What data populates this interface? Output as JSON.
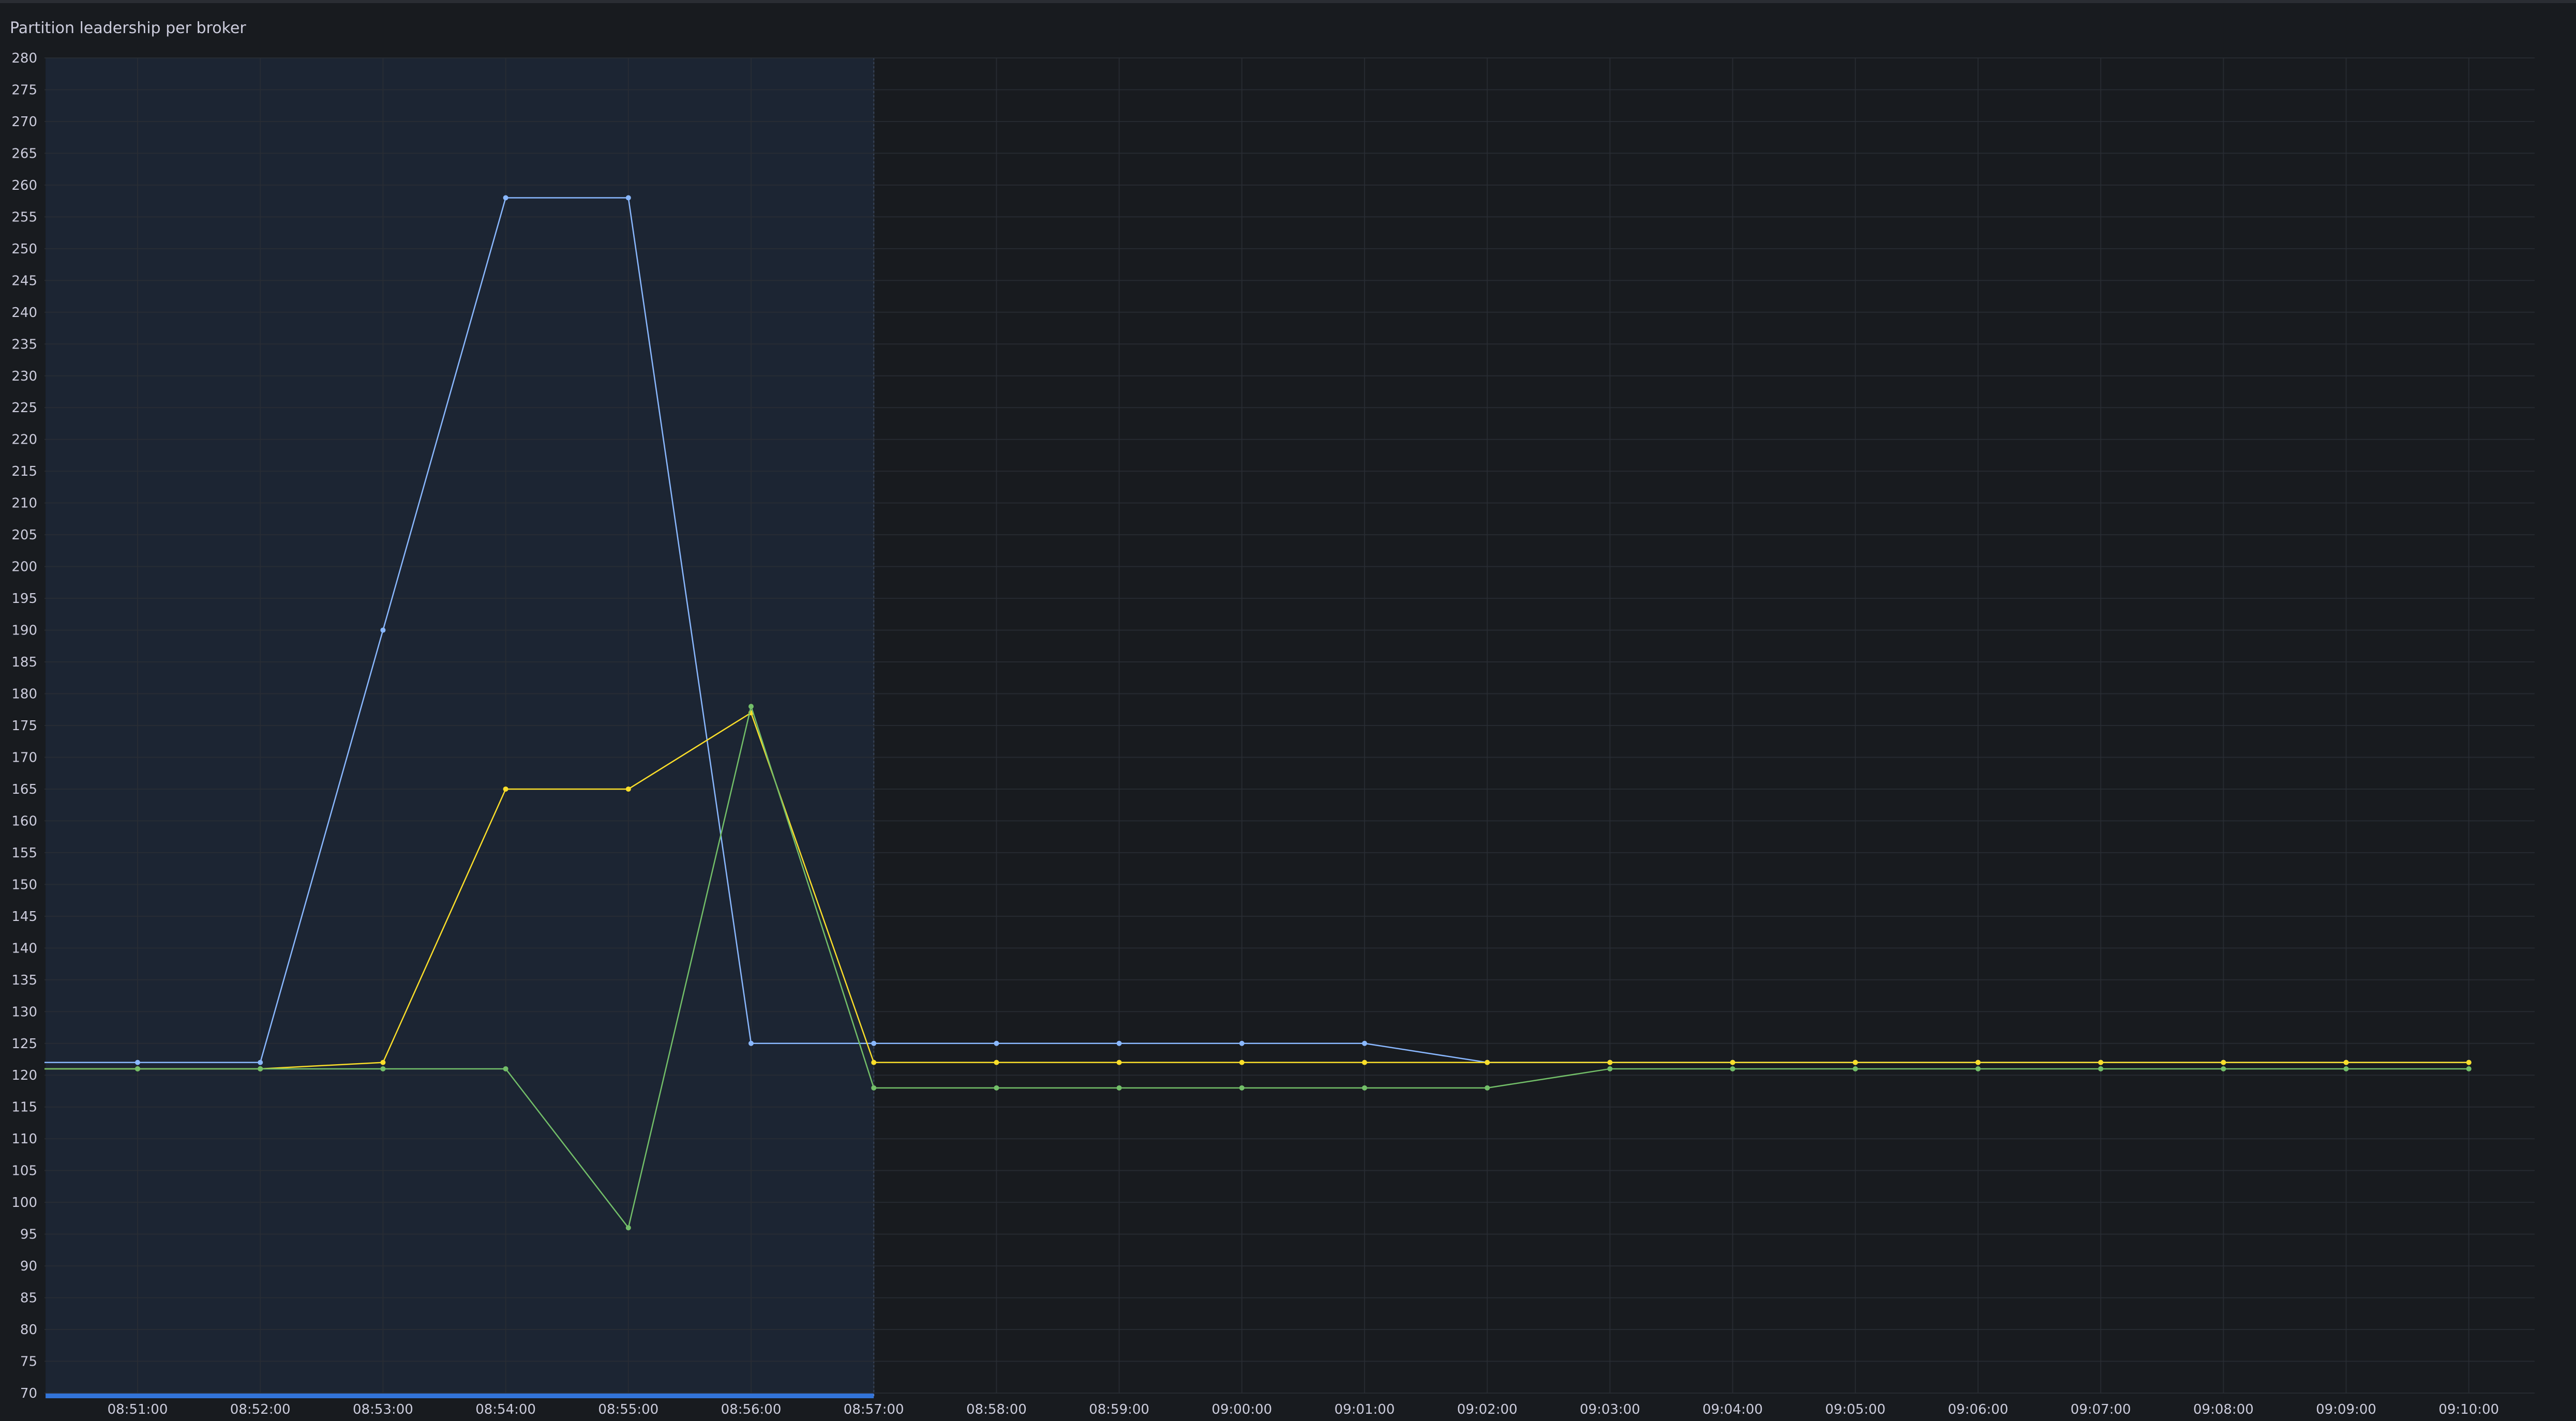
{
  "panel": {
    "title": "Partition leadership per broker"
  },
  "colors": {
    "background": "#181b1f",
    "grid": "#2a2e35",
    "selection_fill": "#1c2533",
    "selection_bar": "#3274d9",
    "series_blue": "#8ab8ff",
    "series_yellow": "#fade2a",
    "series_green": "#73bf69"
  },
  "chart_data": {
    "type": "line",
    "title": "Partition leadership per broker",
    "xlabel": "",
    "ylabel": "",
    "ylim": [
      70,
      280
    ],
    "y_ticks": [
      70,
      75,
      80,
      85,
      90,
      95,
      100,
      105,
      110,
      115,
      120,
      125,
      130,
      135,
      140,
      145,
      150,
      155,
      160,
      165,
      170,
      175,
      180,
      185,
      190,
      195,
      200,
      205,
      210,
      215,
      220,
      225,
      230,
      235,
      240,
      245,
      250,
      255,
      260,
      265,
      270,
      275,
      280
    ],
    "x": [
      "08:51:00",
      "08:52:00",
      "08:53:00",
      "08:54:00",
      "08:55:00",
      "08:56:00",
      "08:57:00",
      "08:58:00",
      "08:59:00",
      "09:00:00",
      "09:01:00",
      "09:02:00",
      "09:03:00",
      "09:04:00",
      "09:05:00",
      "09:06:00",
      "09:07:00",
      "09:08:00",
      "09:09:00",
      "09:10:00"
    ],
    "x_ticks": [
      "08:51:00",
      "08:52:00",
      "08:53:00",
      "08:54:00",
      "08:55:00",
      "08:56:00",
      "08:57:00",
      "08:58:00",
      "08:59:00",
      "09:00:00",
      "09:01:00",
      "09:02:00",
      "09:03:00",
      "09:04:00",
      "09:05:00",
      "09:06:00",
      "09:07:00",
      "09:08:00",
      "09:09:00",
      "09:10:00"
    ],
    "selected_range": [
      "08:50:15",
      "08:57:00"
    ],
    "grid": true,
    "legend": "none",
    "series": [
      {
        "color": "#8ab8ff",
        "values": [
          122,
          122,
          190,
          258,
          258,
          125,
          125,
          125,
          125,
          125,
          125,
          122,
          122,
          122,
          122,
          122,
          122,
          122,
          122,
          122
        ]
      },
      {
        "color": "#fade2a",
        "values": [
          121,
          121,
          122,
          165,
          165,
          177,
          122,
          122,
          122,
          122,
          122,
          122,
          122,
          122,
          122,
          122,
          122,
          122,
          122,
          122
        ]
      },
      {
        "color": "#73bf69",
        "values": [
          121,
          121,
          121,
          121,
          96,
          178,
          118,
          118,
          118,
          118,
          118,
          118,
          121,
          121,
          121,
          121,
          121,
          121,
          121,
          121
        ]
      }
    ]
  }
}
